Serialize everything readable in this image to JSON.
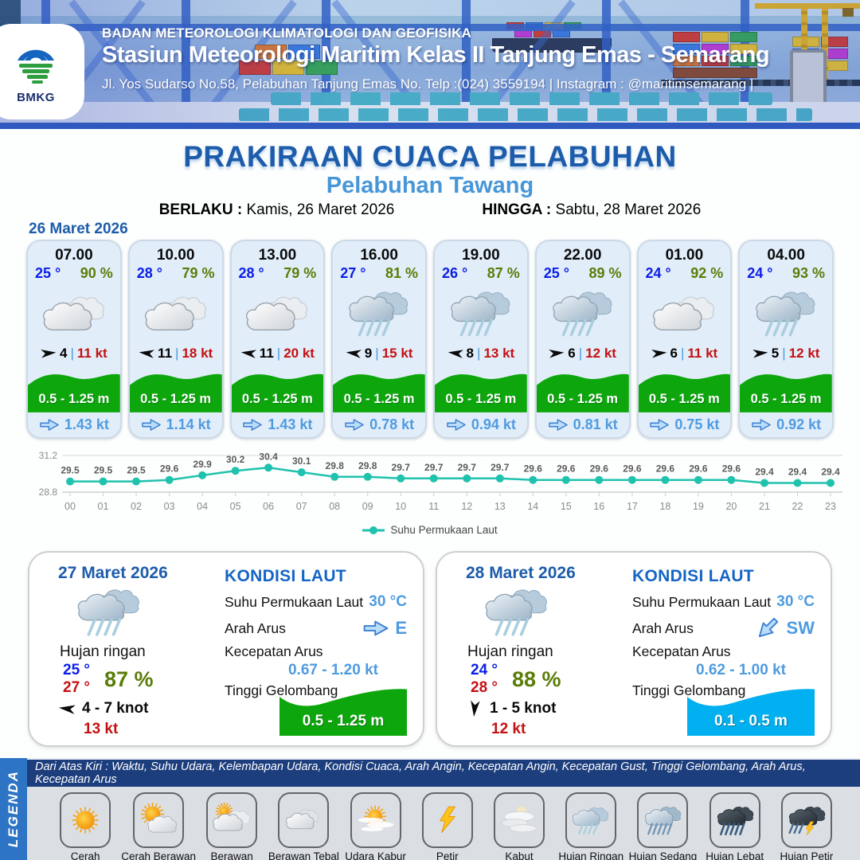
{
  "header": {
    "logo_text": "BMKG",
    "org": "BADAN METEOROLOGI KLIMATOLOGI DAN GEOFISIKA",
    "station": "Stasiun Meteorologi Maritim Kelas II Tanjung Emas - Semarang",
    "address": "Jl. Yos Sudarso No.58, Pelabuhan Tanjung Emas No. Telp :(024) 3559194 | Instagram : @maritimsemarang |"
  },
  "title": {
    "main": "PRAKIRAAN CUACA PELABUHAN",
    "subtitle": "Pelabuhan Tawang",
    "berlaku_label": "BERLAKU :",
    "berlaku_value": "Kamis, 26 Maret 2026",
    "hingga_label": "HINGGA :",
    "hingga_value": "Sabtu, 28 Maret 2026"
  },
  "forecast_date": "26 Maret 2026",
  "cards": [
    {
      "time": "07.00",
      "temp": "25 °",
      "humidity": "90 %",
      "icon": "berawan",
      "wind_dir": "right",
      "wind_speed": "4",
      "separator": "|",
      "gust": "11 kt",
      "wave": "0.5 - 1.25 m",
      "current": "1.43 kt"
    },
    {
      "time": "10.00",
      "temp": "28 °",
      "humidity": "79 %",
      "icon": "berawan",
      "wind_dir": "left",
      "wind_speed": "11",
      "separator": "|",
      "gust": "18 kt",
      "wave": "0.5 - 1.25 m",
      "current": "1.14 kt"
    },
    {
      "time": "13.00",
      "temp": "28 °",
      "humidity": "79 %",
      "icon": "berawan",
      "wind_dir": "left",
      "wind_speed": "11",
      "separator": "|",
      "gust": "20 kt",
      "wave": "0.5 - 1.25 m",
      "current": "1.43 kt"
    },
    {
      "time": "16.00",
      "temp": "27 °",
      "humidity": "81 %",
      "icon": "hujan-ringan",
      "wind_dir": "left",
      "wind_speed": "9",
      "separator": "|",
      "gust": "15 kt",
      "wave": "0.5 - 1.25 m",
      "current": "0.78 kt"
    },
    {
      "time": "19.00",
      "temp": "26 °",
      "humidity": "87 %",
      "icon": "hujan-ringan",
      "wind_dir": "left",
      "wind_speed": "8",
      "separator": "|",
      "gust": "13 kt",
      "wave": "0.5 - 1.25 m",
      "current": "0.94 kt"
    },
    {
      "time": "22.00",
      "temp": "25 °",
      "humidity": "89 %",
      "icon": "hujan-ringan",
      "wind_dir": "right",
      "wind_speed": "6",
      "separator": "|",
      "gust": "12 kt",
      "wave": "0.5 - 1.25 m",
      "current": "0.81 kt"
    },
    {
      "time": "01.00",
      "temp": "24 °",
      "humidity": "92 %",
      "icon": "berawan",
      "wind_dir": "right",
      "wind_speed": "6",
      "separator": "|",
      "gust": "11 kt",
      "wave": "0.5 - 1.25 m",
      "current": "0.75 kt"
    },
    {
      "time": "04.00",
      "temp": "24 °",
      "humidity": "93 %",
      "icon": "hujan-ringan",
      "wind_dir": "right",
      "wind_speed": "5",
      "separator": "|",
      "gust": "12 kt",
      "wave": "0.5 - 1.25 m",
      "current": "0.92 kt"
    }
  ],
  "chart_data": {
    "type": "line",
    "x": [
      "00",
      "01",
      "02",
      "03",
      "04",
      "05",
      "06",
      "07",
      "08",
      "09",
      "10",
      "11",
      "12",
      "13",
      "14",
      "15",
      "16",
      "17",
      "18",
      "19",
      "20",
      "21",
      "22",
      "23"
    ],
    "values": [
      29.5,
      29.5,
      29.5,
      29.6,
      29.9,
      30.2,
      30.4,
      30.1,
      29.8,
      29.8,
      29.7,
      29.7,
      29.7,
      29.7,
      29.6,
      29.6,
      29.6,
      29.6,
      29.6,
      29.6,
      29.6,
      29.4,
      29.4,
      29.4
    ],
    "ylim": [
      28.8,
      31.2
    ],
    "ytick_labels": [
      "28.8",
      "31.2"
    ],
    "legend": "Suhu Permukaan Laut",
    "line_color": "#1fc2ad",
    "grid": true,
    "legend_position": "bottom-center"
  },
  "panels": [
    {
      "date": "27 Maret 2026",
      "icon": "hujan-ringan",
      "condition": "Hujan ringan",
      "temp_min": "25 °",
      "temp_max": "27 °",
      "humidity": "87 %",
      "wind_dir": "left",
      "wind_range": "4  - 7 knot",
      "gust": "13 kt",
      "sea_title": "KONDISI LAUT",
      "sst_label": "Suhu Permukaan Laut",
      "sst_value": "30 °C",
      "current_dir_label": "Arah Arus",
      "current_dir": "E",
      "current_arrow": "right",
      "current_speed_label": "Kecepatan Arus",
      "current_speed": "0.67 - 1.20 kt",
      "wave_label": "Tinggi Gelombang",
      "wave_value": "0.5 - 1.25 m",
      "wave_color": "#0da70d"
    },
    {
      "date": "28 Maret 2026",
      "icon": "hujan-ringan",
      "condition": "Hujan ringan",
      "temp_min": "24 °",
      "temp_max": "28 °",
      "humidity": "88 %",
      "wind_dir": "down",
      "wind_range": "1  - 5 knot",
      "gust": "12 kt",
      "sea_title": "KONDISI LAUT",
      "sst_label": "Suhu Permukaan Laut",
      "sst_value": "30 °C",
      "current_dir_label": "Arah Arus",
      "current_dir": "SW",
      "current_arrow": "sw",
      "current_speed_label": "Kecepatan Arus",
      "current_speed": "0.62 - 1.00 kt",
      "wave_label": "Tinggi Gelombang",
      "wave_value": "0.1 - 0.5 m",
      "wave_color": "#00b0f0"
    }
  ],
  "legend": {
    "title": "LEGENDA",
    "description": "Dari Atas Kiri : Waktu, Suhu Udara, Kelembapan Udara, Kondisi Cuaca, Arah Angin, Kecepatan Angin, Kecepatan Gust, Tinggi Gelombang, Arah Arus, Kecepatan Arus",
    "items": [
      {
        "label": "Cerah",
        "icon": "cerah"
      },
      {
        "label": "Cerah Berawan",
        "icon": "cerah-berawan"
      },
      {
        "label": "Berawan",
        "icon": "berawan"
      },
      {
        "label": "Berawan Tebal",
        "icon": "berawan-tebal"
      },
      {
        "label": "Udara Kabur",
        "icon": "udara-kabur"
      },
      {
        "label": "Petir",
        "icon": "petir"
      },
      {
        "label": "Kabut",
        "icon": "kabut"
      },
      {
        "label": "Hujan Ringan",
        "icon": "hujan-ringan"
      },
      {
        "label": "Hujan Sedang",
        "icon": "hujan-sedang"
      },
      {
        "label": "Hujan Lebat",
        "icon": "hujan-lebat"
      },
      {
        "label": "Hujan Petir",
        "icon": "hujan-petir"
      }
    ]
  },
  "colors": {
    "title_blue": "#1c5cab",
    "subtitle_blue": "#4796d8",
    "temp_blue": "#0b1ee8",
    "humidity_green": "#5a7d08",
    "gust_red": "#c41111",
    "wave_green": "#0da70d",
    "wave_lightblue": "#00b0f0",
    "current_blue": "#4f9be0",
    "chart_teal": "#1fc2ad"
  }
}
